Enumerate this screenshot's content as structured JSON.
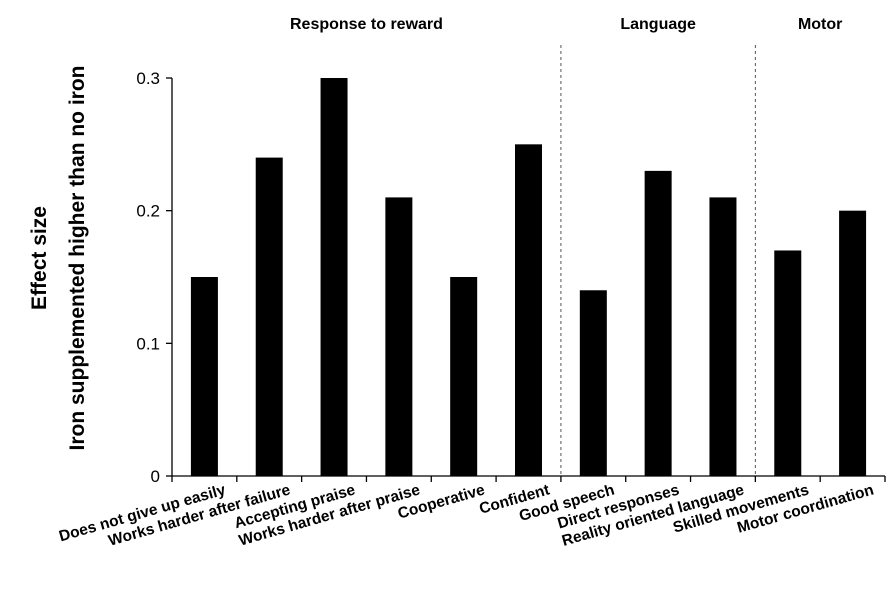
{
  "chart_data": {
    "type": "bar",
    "ylabel": "Effect size",
    "ylabel_secondary": "Iron supplemented higher than no iron",
    "ylim": [
      0,
      0.3
    ],
    "yticks": [
      "0",
      "0.1",
      "0.2",
      "0.3"
    ],
    "categories": [
      "Does not give up easily",
      "Works harder after failure",
      "Accepting praise",
      "Works harder after praise",
      "Cooperative",
      "Confident",
      "Good speech",
      "Direct responses",
      "Reality oriented language",
      "Skilled movements",
      "Motor coordination"
    ],
    "values": [
      0.15,
      0.24,
      0.3,
      0.21,
      0.15,
      0.25,
      0.14,
      0.23,
      0.21,
      0.17,
      0.2
    ],
    "groups": [
      {
        "label": "Response to reward",
        "start": 0,
        "end": 5
      },
      {
        "label": "Language",
        "start": 6,
        "end": 8
      },
      {
        "label": "Motor",
        "start": 9,
        "end": 10
      }
    ],
    "grid": false,
    "bar_color": "#000000"
  }
}
